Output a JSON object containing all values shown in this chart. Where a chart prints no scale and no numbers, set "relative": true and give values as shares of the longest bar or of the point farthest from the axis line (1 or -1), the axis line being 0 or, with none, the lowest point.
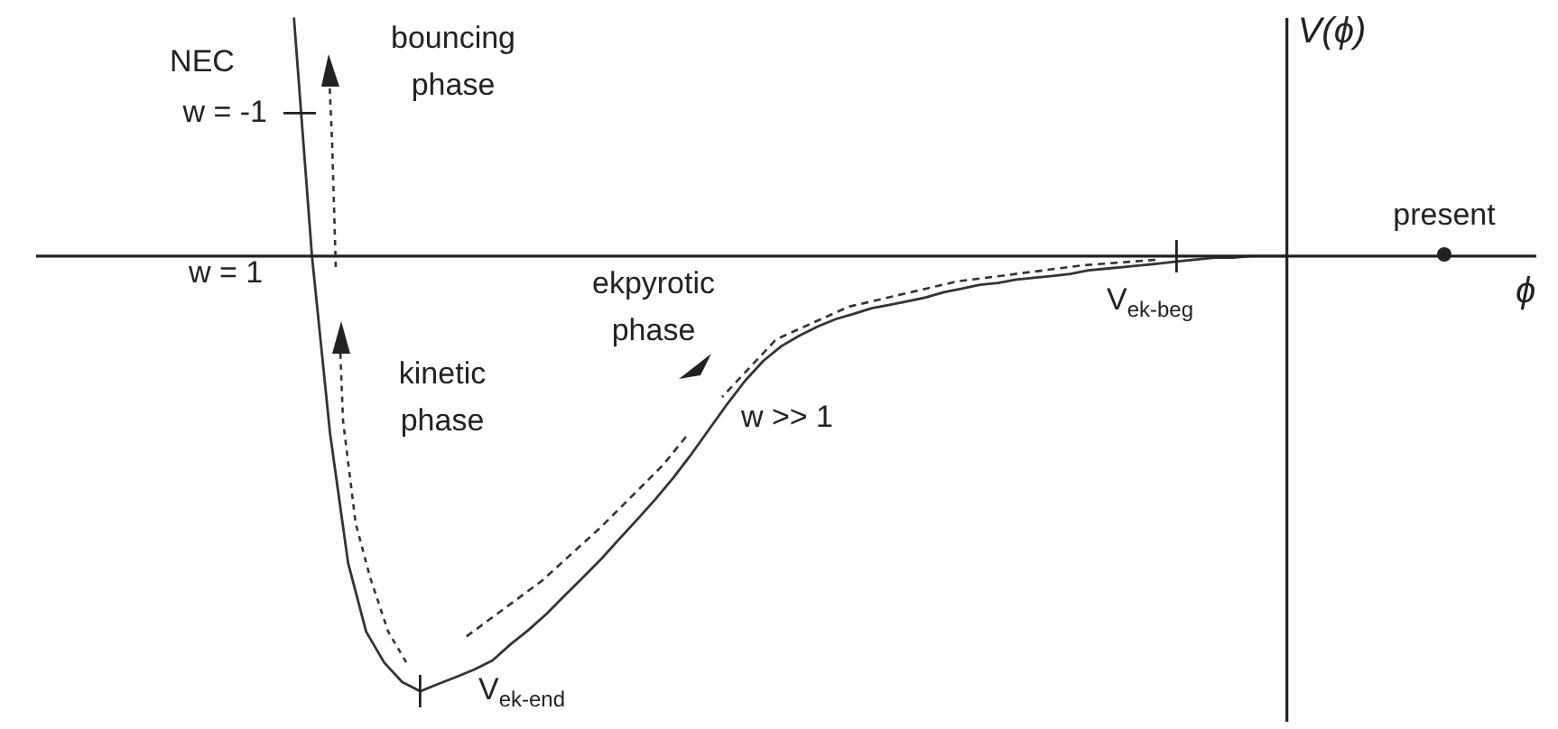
{
  "chart_data": {
    "type": "line",
    "relative": true,
    "ylabel": "V(ϕ)",
    "marker": "none",
    "line_style": "solid",
    "color": "#333333",
    "categories": [
      null,
      null,
      null,
      null,
      null,
      null,
      null,
      null,
      null,
      null,
      null,
      null,
      null,
      null,
      null,
      null,
      null,
      null,
      null,
      null,
      null,
      null,
      null,
      null,
      null,
      null,
      null,
      null,
      null,
      null,
      null,
      null,
      null,
      null,
      null,
      null,
      null,
      null,
      null,
      null,
      null,
      null,
      null,
      null,
      null,
      null,
      null,
      null,
      null,
      null,
      null,
      null,
      null,
      null,
      null,
      null
    ],
    "values": [
      0.548,
      0,
      -0.407,
      -0.705,
      -0.863,
      -0.934,
      -0.979,
      -1,
      -0.983,
      -0.967,
      -0.95,
      -0.929,
      -0.892,
      -0.859,
      -0.822,
      -0.78,
      -0.739,
      -0.697,
      -0.651,
      -0.606,
      -0.56,
      -0.51,
      -0.456,
      -0.398,
      -0.34,
      -0.286,
      -0.241,
      -0.207,
      -0.183,
      -0.162,
      -0.145,
      -0.133,
      -0.12,
      -0.112,
      -0.104,
      -0.095,
      -0.083,
      -0.075,
      -0.066,
      -0.062,
      -0.054,
      -0.05,
      -0.046,
      -0.041,
      -0.033,
      -0.029,
      -0.025,
      -0.021,
      -0.017,
      -0.012,
      -0.008,
      -0.004,
      -0.004,
      0,
      0,
      0
    ],
    "annotations": [
      "NEC",
      "w = -1",
      "bouncing phase",
      "w = 1",
      "ekpyrotic phase",
      "kinetic phase",
      "w >> 1",
      "V$_{ek-end}$",
      "V$_{ek-beg}$",
      "present",
      "ϕ"
    ]
  }
}
